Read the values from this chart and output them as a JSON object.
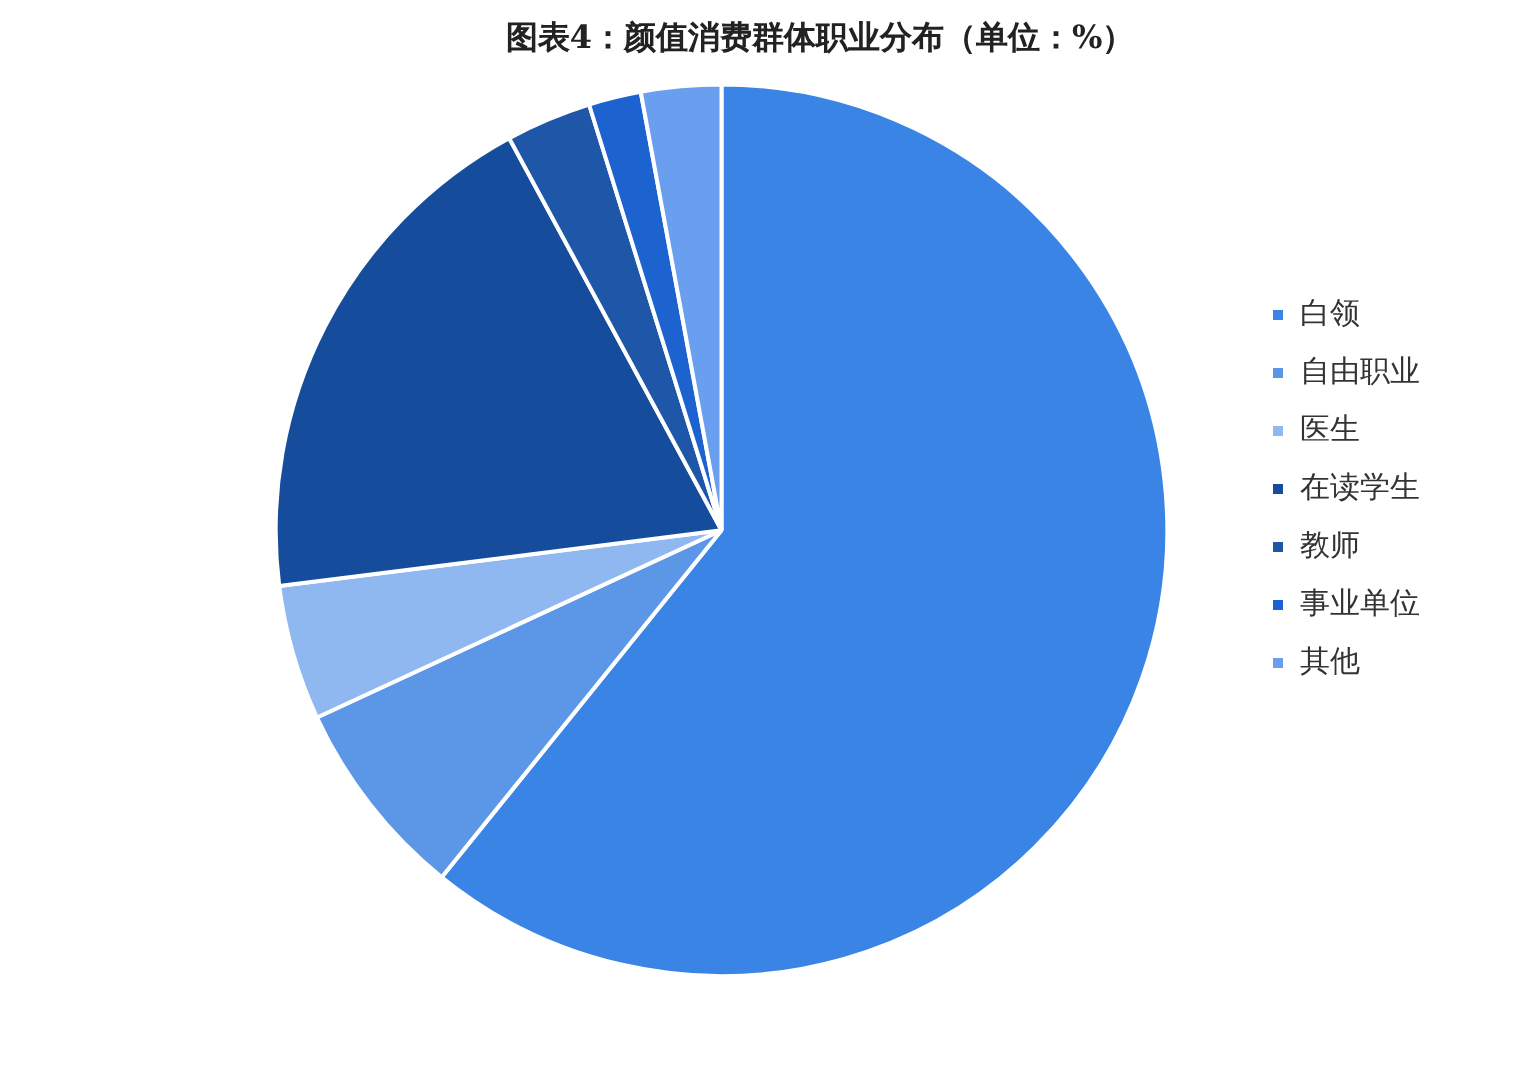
{
  "chart_data": {
    "type": "pie",
    "title": "图表4：颜值消费群体职业分布（单位：%）",
    "categories": [
      "白领",
      "自由职业",
      "医生",
      "在读学生",
      "教师",
      "事业单位",
      "其他"
    ],
    "values": [
      60.8,
      7.3,
      4.9,
      19.1,
      3.1,
      1.9,
      2.9
    ],
    "colors": [
      "#3a84e6",
      "#5b97e6",
      "#8fb8f0",
      "#164c9c",
      "#1e56a8",
      "#1d63d0",
      "#6a9ff0"
    ],
    "legend": "right"
  }
}
